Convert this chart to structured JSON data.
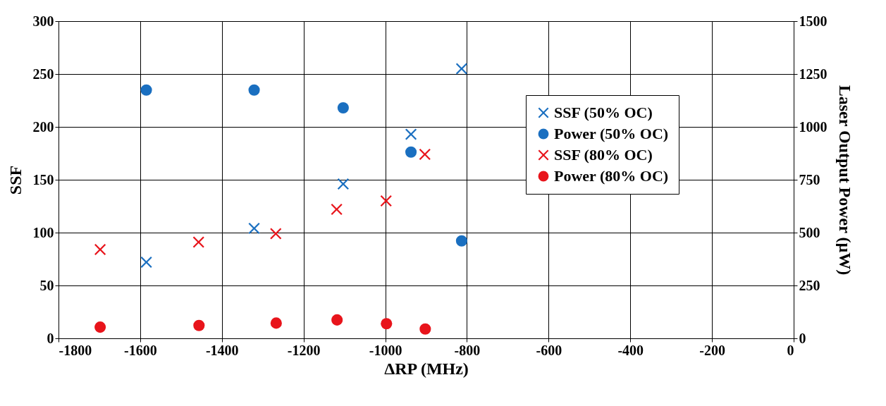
{
  "chart_data": {
    "type": "scatter",
    "xlabel": "ΔRP (MHz)",
    "ylabel": "SSF",
    "y2label": "Laser Output Power (µW)",
    "xlim": [
      -1800,
      0
    ],
    "xticks": [
      -1800,
      -1600,
      -1400,
      -1200,
      -1000,
      -800,
      -600,
      -400,
      -200,
      0
    ],
    "ylim": [
      0,
      300
    ],
    "yticks": [
      0,
      50,
      100,
      150,
      200,
      250,
      300
    ],
    "y2lim": [
      0,
      1500
    ],
    "y2ticks": [
      0,
      250,
      500,
      750,
      1000,
      1250,
      1500
    ],
    "grid": true,
    "legend": "right",
    "series": [
      {
        "name": "SSF (50% OC)",
        "color": "#1a6fc0",
        "marker": "cross",
        "x": [
          -1585,
          -1321,
          -1103,
          -937,
          -813
        ],
        "values": [
          72,
          104,
          146,
          193,
          255
        ]
      },
      {
        "name": "Power (50% OC)",
        "color": "#1a6fc0",
        "marker": "circle",
        "axis": "y2",
        "x": [
          -1585,
          -1321,
          -1103,
          -937,
          -813
        ],
        "values": [
          1174,
          1174,
          1090,
          881,
          461
        ]
      },
      {
        "name": "SSF (80% OC)",
        "color": "#e8141b",
        "marker": "cross",
        "x": [
          -1698,
          -1457,
          -1268,
          -1119,
          -998,
          -903
        ],
        "values": [
          84,
          91,
          99,
          122,
          130,
          174
        ]
      },
      {
        "name": "Power (80% OC)",
        "color": "#e8141b",
        "marker": "circle",
        "axis": "y2",
        "x": [
          -1698,
          -1456,
          -1267,
          -1118,
          -997,
          -902
        ],
        "values": [
          53,
          61,
          72,
          87,
          69,
          44
        ]
      }
    ]
  }
}
